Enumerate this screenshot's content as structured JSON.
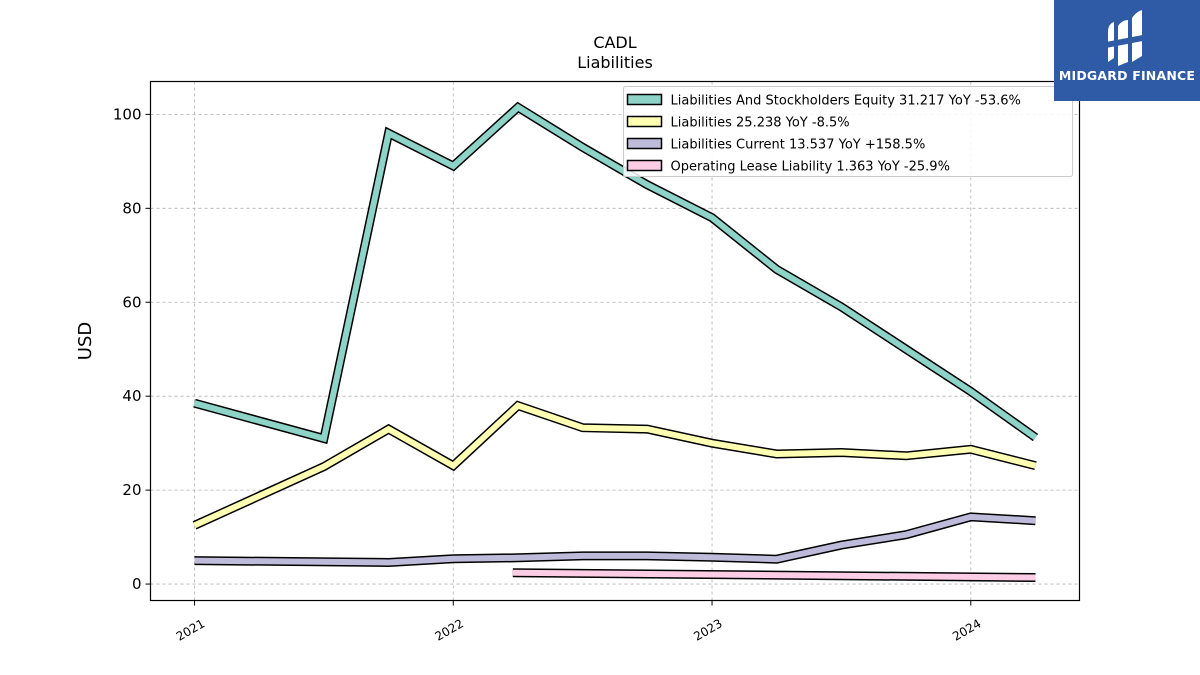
{
  "chart_data": {
    "type": "line",
    "title": "CADL",
    "subtitle": "Liabilities",
    "ylabel": "USD",
    "xlabel": "",
    "ylim": [
      -3.5,
      107
    ],
    "xlim": [
      2020.83,
      2024.42
    ],
    "yticks": [
      0,
      20,
      40,
      60,
      80,
      100
    ],
    "xticks": [
      {
        "value": 2021,
        "label": "2021"
      },
      {
        "value": 2022,
        "label": "2022"
      },
      {
        "value": 2023,
        "label": "2023"
      },
      {
        "value": 2024,
        "label": "2024"
      }
    ],
    "grid": true,
    "legend_position": "top-right",
    "series": [
      {
        "name": "Liabilities And Stockholders Equity  31.217 YoY -53.6%",
        "color": "#8dd3c7",
        "x": [
          2021.0,
          2021.5,
          2021.75,
          2022.0,
          2022.25,
          2022.5,
          2022.75,
          2023.0,
          2023.25,
          2023.5,
          2023.75,
          2024.0,
          2024.25
        ],
        "y": [
          38.5,
          31.0,
          96.0,
          89.0,
          101.5,
          93.0,
          85.0,
          78.0,
          67.0,
          59.0,
          50.0,
          41.0,
          31.2
        ]
      },
      {
        "name": "Liabilities  25.238 YoY -8.5%",
        "color": "#ffffb3",
        "x": [
          2021.0,
          2021.5,
          2021.75,
          2022.0,
          2022.25,
          2022.5,
          2022.75,
          2023.0,
          2023.25,
          2023.5,
          2023.75,
          2024.0,
          2024.25
        ],
        "y": [
          12.5,
          25.0,
          33.0,
          25.2,
          38.0,
          33.3,
          33.0,
          30.0,
          27.7,
          28.0,
          27.3,
          28.7,
          25.2
        ]
      },
      {
        "name": "Liabilities Current  13.537 YoY +158.5%",
        "color": "#bebada",
        "x": [
          2021.0,
          2021.75,
          2022.0,
          2022.25,
          2022.5,
          2022.75,
          2023.0,
          2023.25,
          2023.5,
          2023.75,
          2024.0,
          2024.25
        ],
        "y": [
          5.0,
          4.6,
          5.4,
          5.6,
          6.0,
          6.0,
          5.7,
          5.3,
          8.3,
          10.5,
          14.3,
          13.5
        ]
      },
      {
        "name": "Operating Lease Liability  1.363 YoY -25.9%",
        "color": "#fccde5",
        "x": [
          2022.23,
          2024.25
        ],
        "y": [
          2.4,
          1.4
        ]
      }
    ]
  },
  "logo": {
    "text": "MIDGARD FINANCE"
  }
}
